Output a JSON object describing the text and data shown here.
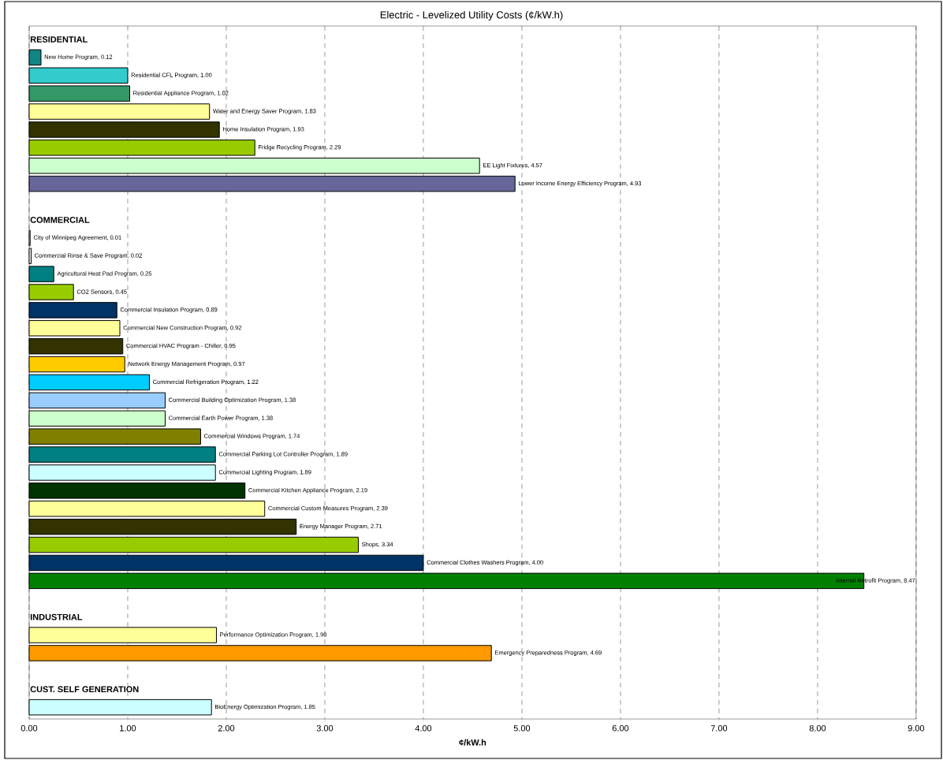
{
  "chart_data": {
    "type": "bar",
    "orientation": "horizontal",
    "title": "Electric - Levelized Utility Costs (¢/kW.h)",
    "xlabel": "¢/kW.h",
    "categories": [
      "RESIDENTIAL",
      "New Home Program, 0.12",
      "Residential CFL Program, 1.00",
      "Residential Appliance Program, 1.02",
      "Water and Energy Saver Program, 1.83",
      "Home Insulation Program, 1.93",
      "Fridge Recycling Program, 2.29",
      "EE Light Fixtures, 4.57",
      "Lower Income Energy Efficiency Program, 4.93",
      null,
      "COMMERCIAL",
      "City of Winnipeg Agreement, 0.01",
      "Commercial Rinse & Save Program, 0.02",
      "Agricultural Heat Pad Program, 0.25",
      "CO2 Sensors, 0.45",
      "Commercial Insulation Program, 0.89",
      "Commercial New Construction Program, 0.92",
      "Commercial HVAC Program - Chiller, 0.95",
      "Network Energy Management Program, 0.97",
      "Commercial Refrigeration Program, 1.22",
      "Commercial Building Optimization Program, 1.38",
      "Commercial Earth Power Program, 1.38",
      "Commercial Windows Program, 1.74",
      "Commercial Parking Lot Controller Program, 1.89",
      "Commercial Lighting Program, 1.89",
      "Commercial Kitchen Appliance Program, 2.19",
      "Commercial Custom Measures Program, 2.39",
      "Energy Manager Program, 2.71",
      "Shops, 3.34",
      "Commercial Clothes Washers Program, 4.00",
      "Internal Retrofit Program, 8.47",
      null,
      "INDUSTRIAL",
      "Performance Optimization Program, 1.90",
      "Emergency Preparedness Program, 4.69",
      null,
      "CUST. SELF GENERATION",
      "BioEnergy Optimization Program, 1.85"
    ],
    "values": [
      null,
      0.12,
      1.0,
      1.02,
      1.83,
      1.93,
      2.29,
      4.57,
      4.93,
      null,
      null,
      0.01,
      0.02,
      0.25,
      0.45,
      0.89,
      0.92,
      0.95,
      0.97,
      1.22,
      1.38,
      1.38,
      1.74,
      1.89,
      1.89,
      2.19,
      2.39,
      2.71,
      3.34,
      4.0,
      8.47,
      null,
      null,
      1.9,
      4.69,
      null,
      null,
      1.85
    ],
    "colors": [
      null,
      "#138484",
      "#33cccc",
      "#339966",
      "#ffff99",
      "#333300",
      "#99cc00",
      "#ccffcc",
      "#666699",
      null,
      null,
      "#ffffff",
      "#ffffff",
      "#008080",
      "#99cc00",
      "#003366",
      "#ffff99",
      "#333300",
      "#ffcc00",
      "#00ccff",
      "#99ccff",
      "#ccffcc",
      "#808000",
      "#008080",
      "#ccffff",
      "#003300",
      "#ffff99",
      "#333300",
      "#99cc00",
      "#003366",
      "#008000",
      null,
      null,
      "#ffff99",
      "#ff9900",
      null,
      null,
      "#ccffff"
    ],
    "xlim": [
      0,
      9
    ],
    "xticks": [
      {
        "value": 0,
        "label": "0.00"
      },
      {
        "value": 1,
        "label": "1.00"
      },
      {
        "value": 2,
        "label": "2.00"
      },
      {
        "value": 3,
        "label": "3.00"
      },
      {
        "value": 4,
        "label": "4.00"
      },
      {
        "value": 5,
        "label": "5.00"
      },
      {
        "value": 6,
        "label": "6.00"
      },
      {
        "value": 7,
        "label": "7.00"
      },
      {
        "value": 8,
        "label": "8.00"
      },
      {
        "value": 9,
        "label": "9.00"
      }
    ],
    "grid": "x"
  }
}
